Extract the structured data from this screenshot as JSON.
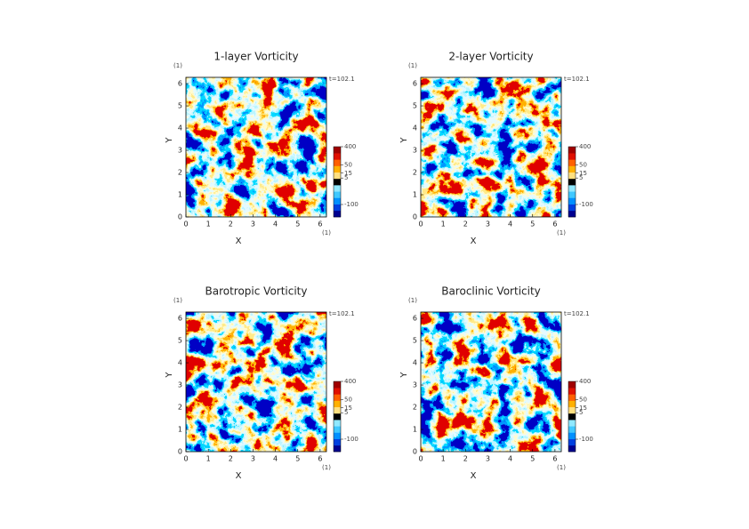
{
  "chart_data": [
    {
      "type": "heatmap",
      "title": "1-layer Vorticity",
      "xlabel": "X",
      "ylabel": "Y",
      "x_unit": "(1)",
      "y_unit": "(1)",
      "time_label": "t=102.1",
      "xlim": [
        0,
        6.283
      ],
      "ylim": [
        0,
        6.283
      ],
      "xticks": [
        0,
        1,
        2,
        3,
        4,
        5,
        6
      ],
      "yticks": [
        0,
        1,
        2,
        3,
        4,
        5,
        6
      ],
      "clim": [
        -400,
        400
      ],
      "cticks": [
        400,
        50,
        15,
        5,
        -100
      ],
      "colors": [
        "#000090",
        "#0040e0",
        "#0090ff",
        "#40c8ff",
        "#90e8ff",
        "#000000",
        "#ffe080",
        "#ffb000",
        "#ff6000",
        "#e01000",
        "#a00000"
      ]
    },
    {
      "type": "heatmap",
      "title": "2-layer Vorticity",
      "xlabel": "X",
      "ylabel": "Y",
      "x_unit": "(1)",
      "y_unit": "(1)",
      "time_label": "t=102.1",
      "xlim": [
        0,
        6.283
      ],
      "ylim": [
        0,
        6.283
      ],
      "xticks": [
        0,
        1,
        2,
        3,
        4,
        5,
        6
      ],
      "yticks": [
        0,
        1,
        2,
        3,
        4,
        5,
        6
      ],
      "clim": [
        -400,
        400
      ],
      "cticks": [
        400,
        50,
        15,
        5,
        -100
      ],
      "colors": [
        "#000090",
        "#0040e0",
        "#0090ff",
        "#40c8ff",
        "#90e8ff",
        "#000000",
        "#ffe080",
        "#ffb000",
        "#ff6000",
        "#e01000",
        "#a00000"
      ]
    },
    {
      "type": "heatmap",
      "title": "Barotropic Vorticity",
      "xlabel": "X",
      "ylabel": "Y",
      "x_unit": "(1)",
      "y_unit": "(1)",
      "time_label": "t=102.1",
      "xlim": [
        0,
        6.283
      ],
      "ylim": [
        0,
        6.283
      ],
      "xticks": [
        0,
        1,
        2,
        3,
        4,
        5,
        6
      ],
      "yticks": [
        0,
        1,
        2,
        3,
        4,
        5,
        6
      ],
      "clim": [
        -400,
        400
      ],
      "cticks": [
        400,
        50,
        15,
        5,
        -100
      ],
      "colors": [
        "#000090",
        "#0040e0",
        "#0090ff",
        "#40c8ff",
        "#90e8ff",
        "#000000",
        "#ffe080",
        "#ffb000",
        "#ff6000",
        "#e01000",
        "#a00000"
      ]
    },
    {
      "type": "heatmap",
      "title": "Baroclinic Vorticity",
      "xlabel": "X",
      "ylabel": "Y",
      "x_unit": "(1)",
      "y_unit": "(1)",
      "time_label": "t=102.1",
      "xlim": [
        0,
        6.283
      ],
      "ylim": [
        0,
        6.283
      ],
      "xticks": [
        0,
        1,
        2,
        3,
        4,
        5,
        6
      ],
      "yticks": [
        0,
        1,
        2,
        3,
        4,
        5,
        6
      ],
      "clim": [
        -400,
        400
      ],
      "cticks": [
        400,
        50,
        15,
        5,
        -100
      ],
      "colors": [
        "#000090",
        "#0040e0",
        "#0090ff",
        "#40c8ff",
        "#90e8ff",
        "#000000",
        "#ffe080",
        "#ffb000",
        "#ff6000",
        "#e01000",
        "#a00000"
      ]
    }
  ]
}
